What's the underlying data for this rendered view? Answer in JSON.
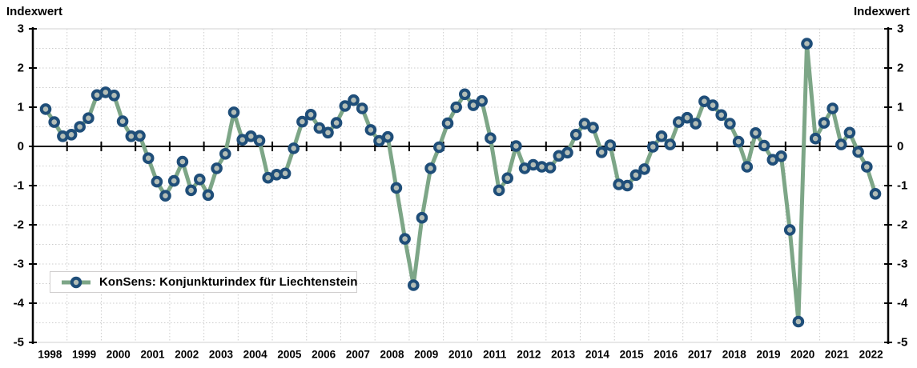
{
  "axes": {
    "left_title": "Indexwert",
    "right_title": "Indexwert"
  },
  "legend": {
    "label": "KonSens: Konjunkturindex für Liechtenstein",
    "position": "inside-bottom-left"
  },
  "colors": {
    "series_line": "#7DA687",
    "marker_ring": "#1F4E79",
    "marker_fill": "#B3BDB6",
    "axis": "#000000",
    "gridline": "#cccccc",
    "plot_border": "#d9d9d9",
    "legend_border": "#d0cece",
    "text": "#000000",
    "background": "#ffffff"
  },
  "chart_data": {
    "type": "line",
    "title": "",
    "xlabel": "",
    "ylabel_left": "Indexwert",
    "ylabel_right": "Indexwert",
    "ylim": [
      -5,
      3
    ],
    "grid": {
      "horizontal_step": 0.5,
      "vertical": "yearly",
      "style": "dotted"
    },
    "zero_line": true,
    "y_tick_values": [
      3,
      2,
      1,
      0,
      -1,
      -2,
      -3,
      -4,
      -5
    ],
    "y_tick_labels": [
      "3",
      "2",
      "1",
      "0",
      "-1",
      "-2",
      "-3",
      "-4",
      "-5"
    ],
    "x_tick_labels": [
      "1998",
      "1999",
      "2000",
      "2001",
      "2002",
      "2003",
      "2004",
      "2005",
      "2006",
      "2007",
      "2008",
      "2009",
      "2010",
      "2011",
      "2012",
      "2013",
      "2014",
      "2015",
      "2016",
      "2017",
      "2018",
      "2019",
      "2020",
      "2021",
      "2022"
    ],
    "series": [
      {
        "name": "KonSens: Konjunkturindex für Liechtenstein",
        "frequency": "quarterly",
        "x_start": "1998-Q2",
        "x_end": "2022-Q3",
        "values": [
          0.95,
          0.62,
          0.26,
          0.3,
          0.5,
          0.72,
          1.31,
          1.38,
          1.3,
          0.64,
          0.26,
          0.27,
          -0.3,
          -0.9,
          -1.26,
          -0.88,
          -0.39,
          -1.12,
          -0.84,
          -1.24,
          -0.56,
          -0.19,
          0.87,
          0.17,
          0.26,
          0.15,
          -0.8,
          -0.72,
          -0.69,
          -0.05,
          0.63,
          0.81,
          0.47,
          0.35,
          0.6,
          1.03,
          1.18,
          0.97,
          0.42,
          0.14,
          0.24,
          -1.06,
          -2.36,
          -3.54,
          -1.82,
          -0.56,
          -0.02,
          0.59,
          1.0,
          1.33,
          1.05,
          1.16,
          0.21,
          -1.12,
          -0.81,
          0.01,
          -0.56,
          -0.47,
          -0.52,
          -0.54,
          -0.24,
          -0.16,
          0.3,
          0.58,
          0.48,
          -0.15,
          0.03,
          -0.97,
          -1.0,
          -0.73,
          -0.58,
          -0.01,
          0.26,
          0.05,
          0.62,
          0.73,
          0.58,
          1.15,
          1.05,
          0.8,
          0.58,
          0.12,
          -0.52,
          0.34,
          0.02,
          -0.34,
          -0.25,
          -2.13,
          -4.47,
          2.62,
          0.2,
          0.6,
          0.97,
          0.05,
          0.35,
          -0.14,
          -0.52,
          -1.21
        ]
      }
    ]
  }
}
